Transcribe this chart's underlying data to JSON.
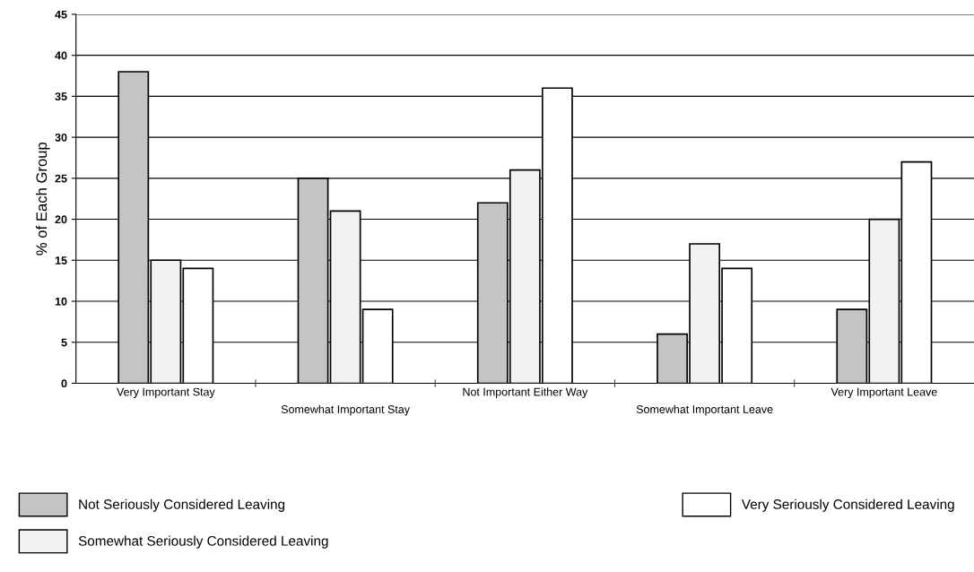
{
  "chart_data": {
    "type": "bar",
    "ylabel": "% of Each Group",
    "categories": [
      "Very Important Stay",
      "Somewhat Important Stay",
      "Not Important Either Way",
      "Somewhat Important Leave",
      "Very Important Leave"
    ],
    "series": [
      {
        "name": "Not Seriously Considered Leaving",
        "color": "#c4c4c4",
        "values": [
          38,
          25,
          22,
          6,
          9
        ]
      },
      {
        "name": "Somewhat Seriously Considered Leaving",
        "color": "#f2f2f2",
        "values": [
          15,
          21,
          26,
          17,
          20
        ]
      },
      {
        "name": "Very Seriously Considered Leaving",
        "color": "#ffffff",
        "values": [
          14,
          9,
          36,
          14,
          27
        ]
      }
    ],
    "ylim": [
      0,
      45
    ],
    "yticks": [
      0,
      5,
      10,
      15,
      20,
      25,
      30,
      35,
      40,
      45
    ],
    "grid": "y",
    "legend": "bottom"
  }
}
